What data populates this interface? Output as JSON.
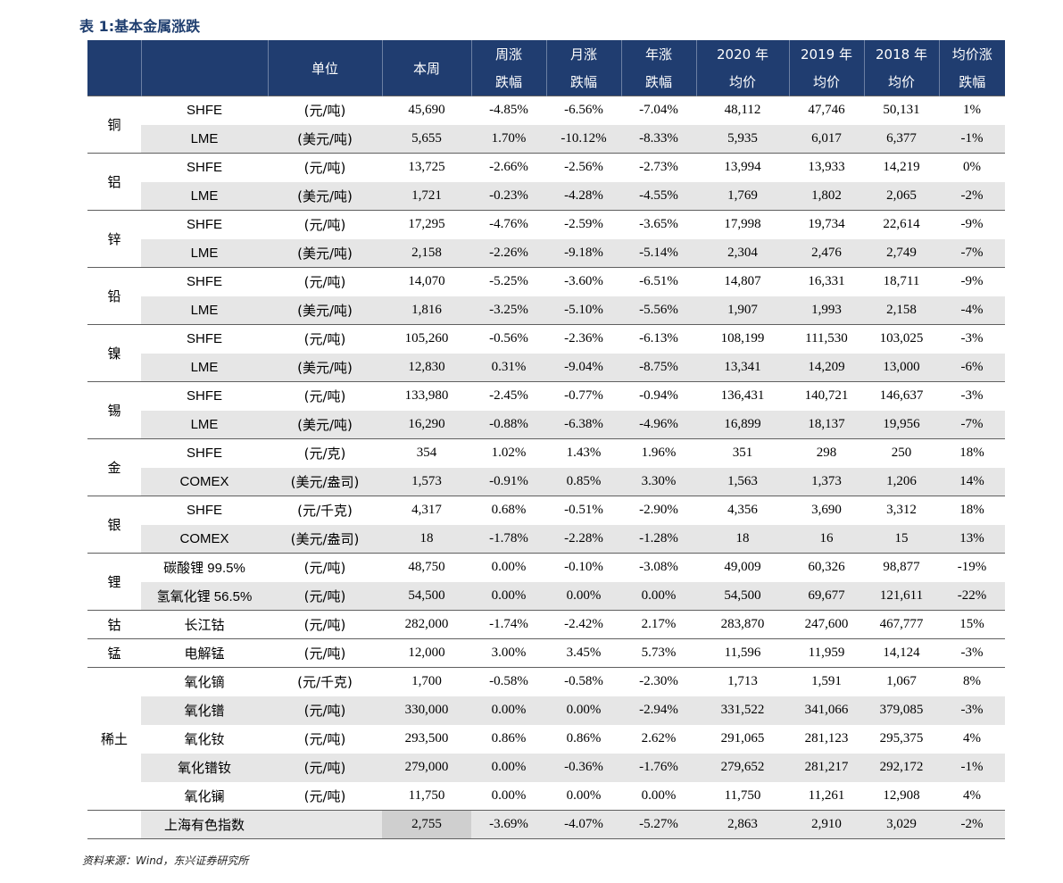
{
  "title": "表 1:基本金属涨跌",
  "header": {
    "unit": "单位",
    "this_week": "本周",
    "week_top": "周涨",
    "week_bot": "跌幅",
    "month_top": "月涨",
    "month_bot": "跌幅",
    "year_top": "年涨",
    "year_bot": "跌幅",
    "y2020_top": "2020 年",
    "y2020_bot": "均价",
    "y2019_top": "2019 年",
    "y2019_bot": "均价",
    "y2018_top": "2018 年",
    "y2018_bot": "均价",
    "avg_top": "均价涨",
    "avg_bot": "跌幅"
  },
  "groups": [
    {
      "metal": "铜",
      "rows": [
        {
          "ex": "SHFE",
          "unit": "(元/吨)",
          "vals": [
            "45,690",
            "-4.85%",
            "-6.56%",
            "-7.04%",
            "48,112",
            "47,746",
            "50,131",
            "1%"
          ]
        },
        {
          "ex": "LME",
          "unit": "(美元/吨)",
          "vals": [
            "5,655",
            "1.70%",
            "-10.12%",
            "-8.33%",
            "5,935",
            "6,017",
            "6,377",
            "-1%"
          ]
        }
      ]
    },
    {
      "metal": "铝",
      "rows": [
        {
          "ex": "SHFE",
          "unit": "(元/吨)",
          "vals": [
            "13,725",
            "-2.66%",
            "-2.56%",
            "-2.73%",
            "13,994",
            "13,933",
            "14,219",
            "0%"
          ]
        },
        {
          "ex": "LME",
          "unit": "(美元/吨)",
          "vals": [
            "1,721",
            "-0.23%",
            "-4.28%",
            "-4.55%",
            "1,769",
            "1,802",
            "2,065",
            "-2%"
          ]
        }
      ]
    },
    {
      "metal": "锌",
      "rows": [
        {
          "ex": "SHFE",
          "unit": "(元/吨)",
          "vals": [
            "17,295",
            "-4.76%",
            "-2.59%",
            "-3.65%",
            "17,998",
            "19,734",
            "22,614",
            "-9%"
          ]
        },
        {
          "ex": "LME",
          "unit": "(美元/吨)",
          "vals": [
            "2,158",
            "-2.26%",
            "-9.18%",
            "-5.14%",
            "2,304",
            "2,476",
            "2,749",
            "-7%"
          ]
        }
      ]
    },
    {
      "metal": "铅",
      "rows": [
        {
          "ex": "SHFE",
          "unit": "(元/吨)",
          "vals": [
            "14,070",
            "-5.25%",
            "-3.60%",
            "-6.51%",
            "14,807",
            "16,331",
            "18,711",
            "-9%"
          ]
        },
        {
          "ex": "LME",
          "unit": "(美元/吨)",
          "vals": [
            "1,816",
            "-3.25%",
            "-5.10%",
            "-5.56%",
            "1,907",
            "1,993",
            "2,158",
            "-4%"
          ]
        }
      ]
    },
    {
      "metal": "镍",
      "rows": [
        {
          "ex": "SHFE",
          "unit": "(元/吨)",
          "vals": [
            "105,260",
            "-0.56%",
            "-2.36%",
            "-6.13%",
            "108,199",
            "111,530",
            "103,025",
            "-3%"
          ]
        },
        {
          "ex": "LME",
          "unit": "(美元/吨)",
          "vals": [
            "12,830",
            "0.31%",
            "-9.04%",
            "-8.75%",
            "13,341",
            "14,209",
            "13,000",
            "-6%"
          ]
        }
      ]
    },
    {
      "metal": "锡",
      "rows": [
        {
          "ex": "SHFE",
          "unit": "(元/吨)",
          "vals": [
            "133,980",
            "-2.45%",
            "-0.77%",
            "-0.94%",
            "136,431",
            "140,721",
            "146,637",
            "-3%"
          ]
        },
        {
          "ex": "LME",
          "unit": "(美元/吨)",
          "vals": [
            "16,290",
            "-0.88%",
            "-6.38%",
            "-4.96%",
            "16,899",
            "18,137",
            "19,956",
            "-7%"
          ]
        }
      ]
    },
    {
      "metal": "金",
      "rows": [
        {
          "ex": "SHFE",
          "unit": "(元/克)",
          "vals": [
            "354",
            "1.02%",
            "1.43%",
            "1.96%",
            "351",
            "298",
            "250",
            "18%"
          ]
        },
        {
          "ex": "COMEX",
          "unit": "(美元/盎司)",
          "vals": [
            "1,573",
            "-0.91%",
            "0.85%",
            "3.30%",
            "1,563",
            "1,373",
            "1,206",
            "14%"
          ]
        }
      ]
    },
    {
      "metal": "银",
      "rows": [
        {
          "ex": "SHFE",
          "unit": "(元/千克)",
          "vals": [
            "4,317",
            "0.68%",
            "-0.51%",
            "-2.90%",
            "4,356",
            "3,690",
            "3,312",
            "18%"
          ]
        },
        {
          "ex": "COMEX",
          "unit": "(美元/盎司)",
          "vals": [
            "18",
            "-1.78%",
            "-2.28%",
            "-1.28%",
            "18",
            "16",
            "15",
            "13%"
          ]
        }
      ]
    },
    {
      "metal": "锂",
      "rows": [
        {
          "ex": "碳酸锂 99.5%",
          "unit": "(元/吨)",
          "vals": [
            "48,750",
            "0.00%",
            "-0.10%",
            "-3.08%",
            "49,009",
            "60,326",
            "98,877",
            "-19%"
          ]
        },
        {
          "ex": "氢氧化锂 56.5%",
          "unit": "(元/吨)",
          "vals": [
            "54,500",
            "0.00%",
            "0.00%",
            "0.00%",
            "54,500",
            "69,677",
            "121,611",
            "-22%"
          ]
        }
      ]
    },
    {
      "metal": "钴",
      "rows": [
        {
          "ex": "长江钴",
          "unit": "(元/吨)",
          "vals": [
            "282,000",
            "-1.74%",
            "-2.42%",
            "2.17%",
            "283,870",
            "247,600",
            "467,777",
            "15%"
          ]
        }
      ]
    },
    {
      "metal": "锰",
      "rows": [
        {
          "ex": "电解锰",
          "unit": "(元/吨)",
          "vals": [
            "12,000",
            "3.00%",
            "3.45%",
            "5.73%",
            "11,596",
            "11,959",
            "14,124",
            "-3%"
          ]
        }
      ]
    },
    {
      "metal": "稀土",
      "rows": [
        {
          "ex": "氧化镝",
          "unit": "(元/千克)",
          "vals": [
            "1,700",
            "-0.58%",
            "-0.58%",
            "-2.30%",
            "1,713",
            "1,591",
            "1,067",
            "8%"
          ]
        },
        {
          "ex": "氧化镨",
          "unit": "(元/吨)",
          "vals": [
            "330,000",
            "0.00%",
            "0.00%",
            "-2.94%",
            "331,522",
            "341,066",
            "379,085",
            "-3%"
          ]
        },
        {
          "ex": "氧化钕",
          "unit": "(元/吨)",
          "vals": [
            "293,500",
            "0.86%",
            "0.86%",
            "2.62%",
            "291,065",
            "281,123",
            "295,375",
            "4%"
          ]
        },
        {
          "ex": "氧化镨钕",
          "unit": "(元/吨)",
          "vals": [
            "279,000",
            "0.00%",
            "-0.36%",
            "-1.76%",
            "279,652",
            "281,217",
            "292,172",
            "-1%"
          ]
        },
        {
          "ex": "氧化镧",
          "unit": "(元/吨)",
          "vals": [
            "11,750",
            "0.00%",
            "0.00%",
            "0.00%",
            "11,750",
            "11,261",
            "12,908",
            "4%"
          ]
        }
      ]
    }
  ],
  "index_row": {
    "name": "上海有色指数",
    "vals": [
      "2,755",
      "-3.69%",
      "-4.07%",
      "-5.27%",
      "2,863",
      "2,910",
      "3,029",
      "-2%"
    ]
  },
  "source": "资料来源：Wind，东兴证券研究所"
}
